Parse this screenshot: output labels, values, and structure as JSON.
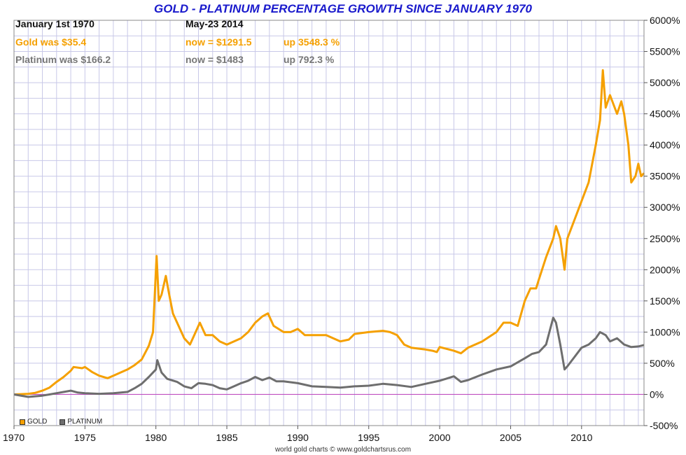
{
  "title": "GOLD - PLATINUM PERCENTAGE GROWTH SINCE JANUARY 1970",
  "header": {
    "start_date": "January 1st 1970",
    "end_date": "May-23  2014",
    "gold": {
      "was": "Gold was $35.4",
      "now": "now = $1291.5",
      "up": "up 3548.3 %"
    },
    "platinum": {
      "was": "Platinum was $166.2",
      "now": "now = $1483",
      "up": "up 792.3 %"
    }
  },
  "legend": {
    "gold": "GOLD",
    "platinum": "PLATINUM"
  },
  "footer": "world gold charts © www.goldchartsrus.com",
  "colors": {
    "gold": "#f5a000",
    "platinum": "#6e6e6e",
    "zero_line": "#c050c0",
    "grid": "#c8c8e8",
    "title": "#1a1acc",
    "header_dark": "#111111",
    "header_gold": "#f5a000",
    "header_plat": "#777777"
  },
  "chart_data": {
    "type": "line",
    "title": "GOLD - PLATINUM PERCENTAGE GROWTH SINCE JANUARY 1970",
    "ylabel": "",
    "xlabel": "",
    "xlim": [
      1970,
      2014.4
    ],
    "ylim": [
      -500,
      6000
    ],
    "x_ticks": [
      "1970",
      "1975",
      "1980",
      "1985",
      "1990",
      "1995",
      "2000",
      "2005",
      "2010"
    ],
    "y_ticks": [
      "6000%",
      "5500%",
      "5000%",
      "4500%",
      "4000%",
      "3500%",
      "3000%",
      "2500%",
      "2000%",
      "1500%",
      "1000%",
      "500%",
      "0%",
      "-500%"
    ],
    "y_axis_side": "right",
    "grid": true,
    "legend_position": "bottom-left",
    "series": [
      {
        "name": "GOLD",
        "x": [
          1970,
          1971,
          1971.5,
          1972,
          1972.5,
          1973,
          1973.5,
          1974,
          1974.2,
          1974.8,
          1975,
          1975.5,
          1976,
          1976.6,
          1977,
          1977.5,
          1978,
          1978.5,
          1979,
          1979.5,
          1979.8,
          1980.05,
          1980.2,
          1980.4,
          1980.7,
          1980.9,
          1981.2,
          1981.6,
          1982,
          1982.4,
          1982.8,
          1983.1,
          1983.5,
          1984,
          1984.5,
          1985,
          1985.5,
          1986,
          1986.5,
          1987,
          1987.5,
          1987.9,
          1988.3,
          1989,
          1989.5,
          1990,
          1990.5,
          1991,
          1992,
          1993,
          1993.6,
          1994,
          1995,
          1996,
          1996.5,
          1997,
          1997.5,
          1998,
          1999,
          1999.5,
          1999.8,
          2000,
          2001,
          2001.5,
          2002,
          2003,
          2004,
          2004.5,
          2005,
          2005.5,
          2006,
          2006.4,
          2006.8,
          2007,
          2007.5,
          2008,
          2008.2,
          2008.5,
          2008.8,
          2009,
          2009.5,
          2010,
          2010.5,
          2011,
          2011.3,
          2011.5,
          2011.7,
          2012,
          2012.5,
          2012.8,
          2013,
          2013.3,
          2013.5,
          2013.8,
          2014,
          2014.2,
          2014.4
        ],
        "y": [
          0,
          10,
          25,
          60,
          110,
          200,
          280,
          380,
          440,
          420,
          440,
          360,
          300,
          260,
          300,
          350,
          400,
          470,
          560,
          780,
          1000,
          2220,
          1500,
          1600,
          1900,
          1650,
          1300,
          1100,
          900,
          800,
          1000,
          1150,
          950,
          950,
          850,
          800,
          850,
          900,
          1000,
          1150,
          1250,
          1300,
          1100,
          1000,
          1000,
          1050,
          950,
          950,
          950,
          850,
          880,
          970,
          1000,
          1020,
          1000,
          950,
          800,
          750,
          720,
          700,
          680,
          760,
          700,
          660,
          750,
          850,
          1000,
          1150,
          1150,
          1100,
          1500,
          1700,
          1700,
          1850,
          2200,
          2500,
          2700,
          2500,
          2000,
          2500,
          2800,
          3100,
          3400,
          4000,
          4400,
          5200,
          4600,
          4800,
          4500,
          4700,
          4500,
          4000,
          3400,
          3500,
          3700,
          3500,
          3548
        ]
      },
      {
        "name": "PLATINUM",
        "x": [
          1970,
          1971,
          1972,
          1972.5,
          1973,
          1974,
          1974.5,
          1975,
          1976,
          1977,
          1978,
          1978.5,
          1979,
          1979.5,
          1980,
          1980.1,
          1980.4,
          1980.8,
          1981.5,
          1982,
          1982.5,
          1983,
          1983.5,
          1984,
          1984.5,
          1985,
          1985.5,
          1986,
          1986.5,
          1987,
          1987.5,
          1988,
          1988.5,
          1989,
          1990,
          1991,
          1992,
          1993,
          1994,
          1995,
          1996,
          1997,
          1998,
          1999,
          2000,
          2001,
          2001.5,
          2002,
          2003,
          2004,
          2005,
          2006,
          2006.5,
          2007,
          2007.5,
          2008,
          2008.2,
          2008.5,
          2008.8,
          2009,
          2009.5,
          2010,
          2010.5,
          2011,
          2011.3,
          2011.7,
          2012,
          2012.5,
          2013,
          2013.5,
          2014,
          2014.4
        ],
        "y": [
          0,
          -40,
          -20,
          0,
          20,
          60,
          30,
          20,
          10,
          20,
          40,
          100,
          170,
          280,
          400,
          550,
          350,
          250,
          200,
          130,
          100,
          180,
          170,
          150,
          100,
          80,
          130,
          180,
          220,
          280,
          230,
          270,
          210,
          210,
          180,
          130,
          120,
          110,
          130,
          140,
          170,
          150,
          120,
          170,
          220,
          290,
          200,
          230,
          320,
          400,
          450,
          580,
          650,
          680,
          800,
          1230,
          1150,
          800,
          400,
          450,
          600,
          750,
          800,
          900,
          1000,
          950,
          850,
          900,
          800,
          760,
          770,
          792
        ]
      }
    ]
  }
}
